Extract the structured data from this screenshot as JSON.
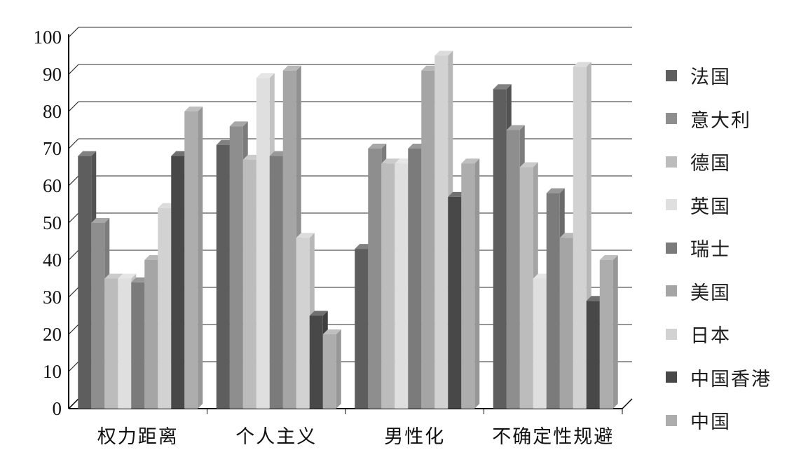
{
  "chart_data": {
    "type": "bar",
    "style": "3d-column-grayscale",
    "title": "",
    "xlabel": "",
    "ylabel": "",
    "categories": [
      "权力距离",
      "个人主义",
      "男性化",
      "不确定性规避"
    ],
    "category_ids": [
      "pdi",
      "idv",
      "mas",
      "uai"
    ],
    "series": [
      {
        "id": "fr",
        "name": "法国",
        "color": "#5e5e5e",
        "values": [
          68,
          71,
          43,
          86
        ]
      },
      {
        "id": "it",
        "name": "意大利",
        "color": "#8e8e8e",
        "values": [
          50,
          76,
          70,
          75
        ]
      },
      {
        "id": "de",
        "name": "德国",
        "color": "#bcbcbc",
        "values": [
          35,
          67,
          66,
          65
        ]
      },
      {
        "id": "uk",
        "name": "英国",
        "color": "#dfdfdf",
        "values": [
          35,
          89,
          66,
          35
        ]
      },
      {
        "id": "ch",
        "name": "瑞士",
        "color": "#7b7b7b",
        "values": [
          34,
          68,
          70,
          58
        ]
      },
      {
        "id": "us",
        "name": "美国",
        "color": "#a5a5a5",
        "values": [
          40,
          91,
          91,
          46
        ]
      },
      {
        "id": "jp",
        "name": "日本",
        "color": "#d2d2d2",
        "values": [
          54,
          46,
          95,
          92
        ]
      },
      {
        "id": "hk",
        "name": "中国香港",
        "color": "#484848",
        "values": [
          68,
          25,
          57,
          29
        ]
      },
      {
        "id": "cn",
        "name": "中国",
        "color": "#adadad",
        "values": [
          80,
          20,
          66,
          40
        ]
      }
    ],
    "ylim": [
      0,
      100
    ],
    "yticks": [
      0,
      10,
      20,
      30,
      40,
      50,
      60,
      70,
      80,
      90,
      100
    ],
    "grid": true,
    "legend_position": "right"
  }
}
